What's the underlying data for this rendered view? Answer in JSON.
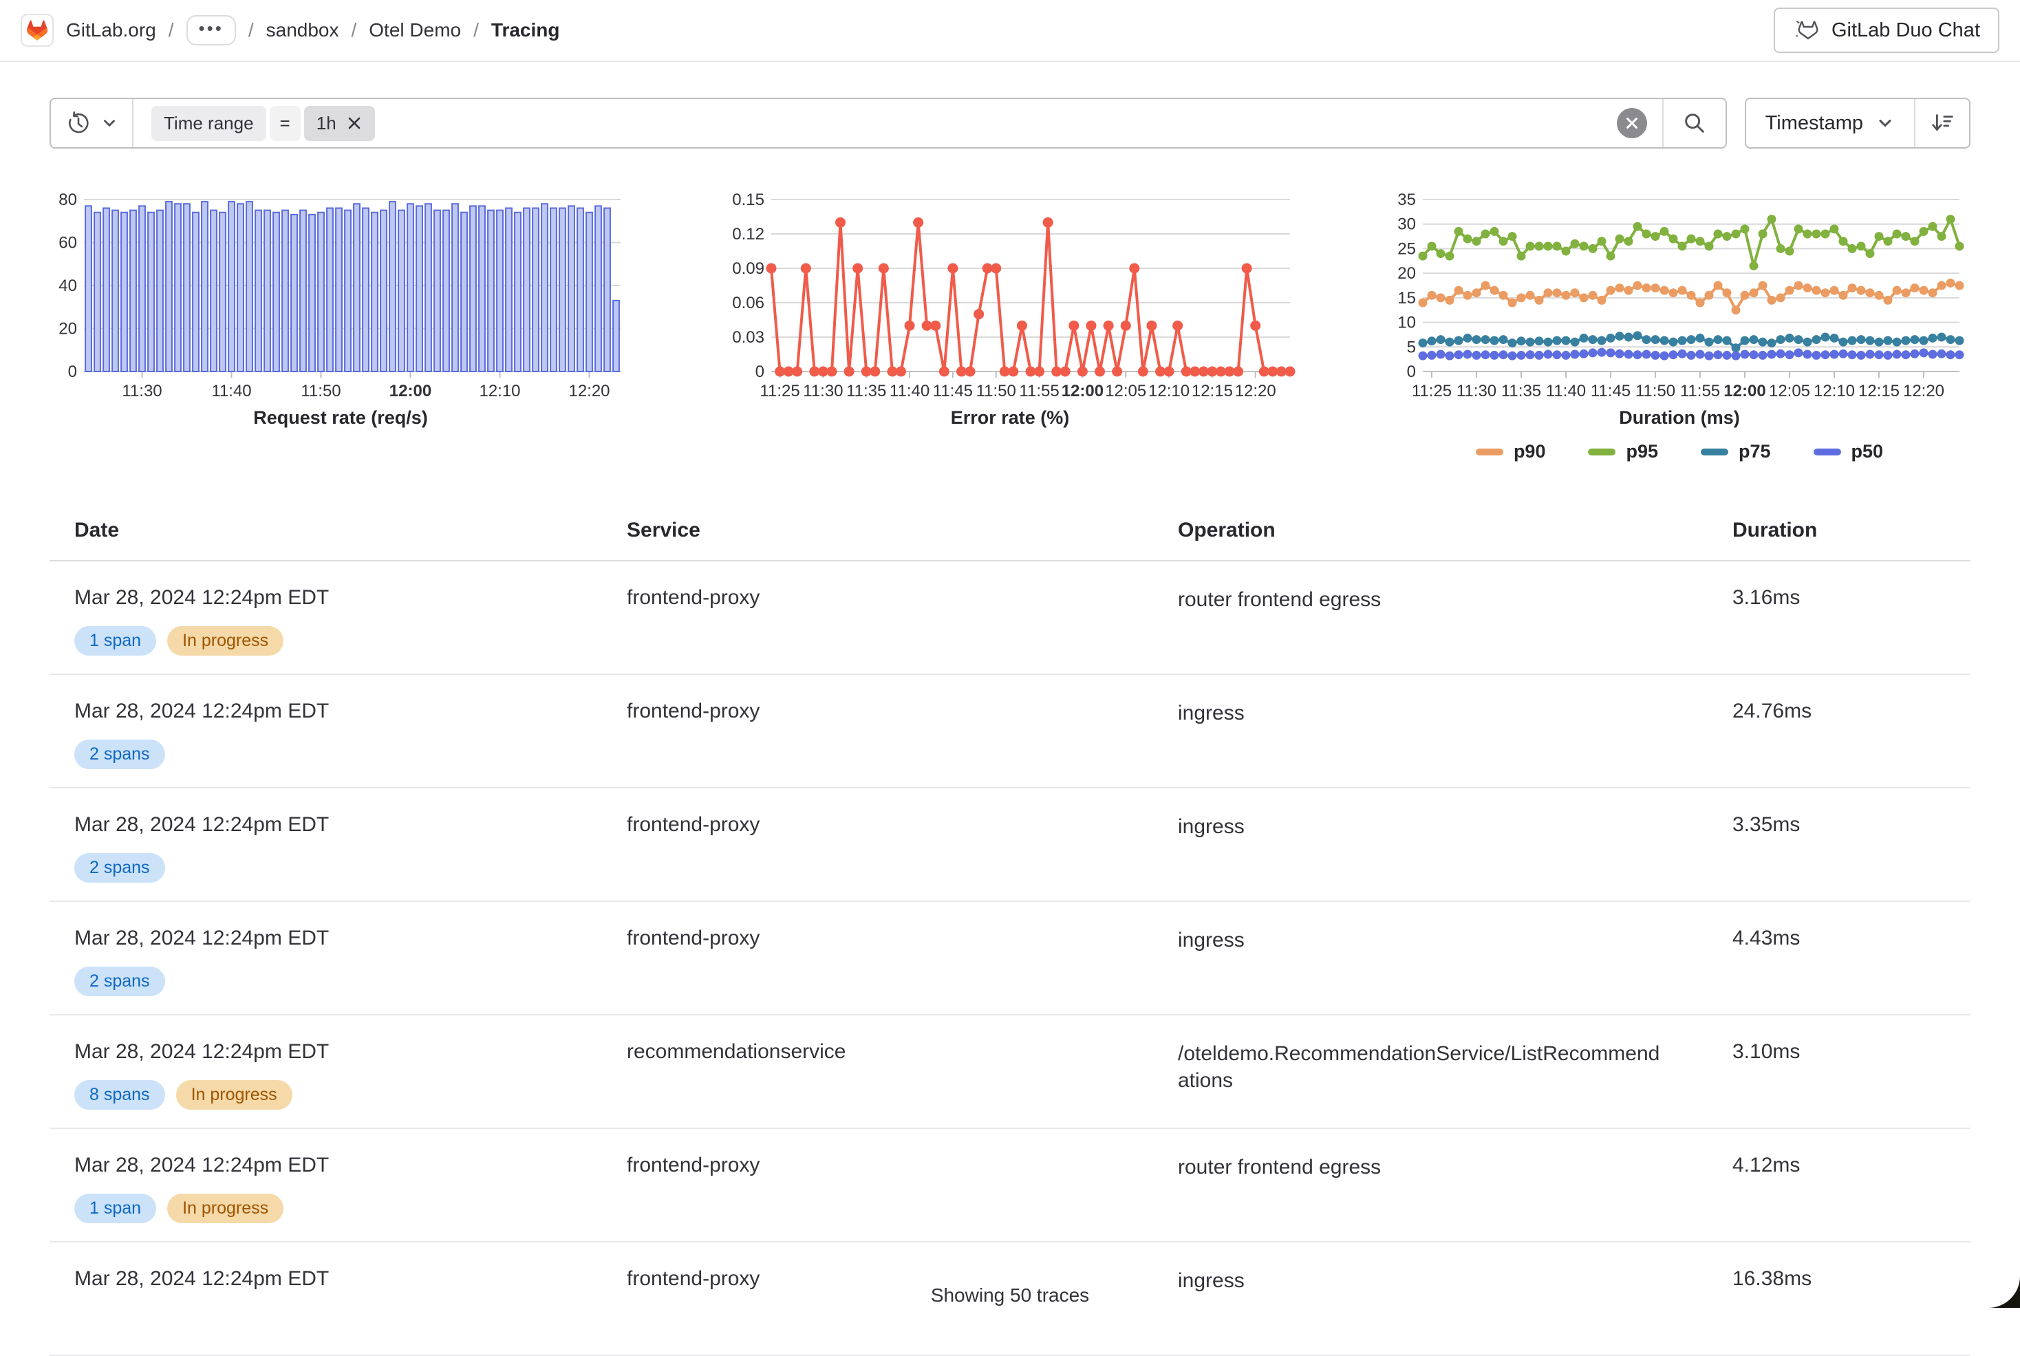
{
  "header": {
    "breadcrumb": [
      {
        "label": "GitLab.org"
      },
      {
        "label": "•••",
        "ellipsis": true
      },
      {
        "label": "sandbox"
      },
      {
        "label": "Otel Demo"
      },
      {
        "label": "Tracing",
        "current": true
      }
    ],
    "duo_chat_label": "GitLab Duo Chat"
  },
  "filter_bar": {
    "token": {
      "field": "Time range",
      "operator": "=",
      "value": "1h"
    },
    "sort_field": "Timestamp"
  },
  "chart_data": [
    {
      "type": "bar",
      "title": "Request rate (req/s)",
      "x_start": "11:24",
      "x_interval_min": 1,
      "x_count": 60,
      "ylim": [
        0,
        80
      ],
      "yticks": [
        0,
        20,
        40,
        60,
        80
      ],
      "xticks": [
        {
          "i": 6,
          "label": "11:30"
        },
        {
          "i": 16,
          "label": "11:40"
        },
        {
          "i": 26,
          "label": "11:50"
        },
        {
          "i": 36,
          "label": "12:00",
          "bold": true
        },
        {
          "i": 46,
          "label": "12:10"
        },
        {
          "i": 56,
          "label": "12:20"
        }
      ],
      "color": "#5a6bdd",
      "fill": "#bfc8f1",
      "values": [
        77,
        74,
        76,
        75,
        74,
        75,
        77,
        74,
        75,
        79,
        78,
        78,
        74,
        79,
        75,
        74,
        79,
        78,
        79,
        75,
        75,
        74,
        75,
        73,
        75,
        73,
        74,
        76,
        76,
        75,
        78,
        76,
        74,
        75,
        79,
        75,
        78,
        77,
        78,
        75,
        75,
        78,
        74,
        77,
        77,
        75,
        75,
        76,
        74,
        76,
        76,
        78,
        76,
        76,
        77,
        76,
        74,
        77,
        76,
        33
      ]
    },
    {
      "type": "line",
      "title": "Error rate (%)",
      "x_start": "11:24",
      "x_interval_min": 1,
      "x_count": 61,
      "ylim": [
        0,
        0.15
      ],
      "yticks": [
        0,
        0.03,
        0.06,
        0.09,
        0.12,
        0.15
      ],
      "xticks": [
        {
          "i": 1,
          "label": "11:25"
        },
        {
          "i": 6,
          "label": "11:30"
        },
        {
          "i": 11,
          "label": "11:35"
        },
        {
          "i": 16,
          "label": "11:40"
        },
        {
          "i": 21,
          "label": "11:45"
        },
        {
          "i": 26,
          "label": "11:50"
        },
        {
          "i": 31,
          "label": "11:55"
        },
        {
          "i": 36,
          "label": "12:00",
          "bold": true
        },
        {
          "i": 41,
          "label": "12:05"
        },
        {
          "i": 46,
          "label": "12:10"
        },
        {
          "i": 51,
          "label": "12:15"
        },
        {
          "i": 56,
          "label": "12:20"
        }
      ],
      "series": [
        {
          "name": "error rate",
          "color": "#f05b4a",
          "width": 4,
          "r": 7.5,
          "values": [
            0.09,
            0,
            0,
            0,
            0.09,
            0,
            0,
            0,
            0.13,
            0,
            0.09,
            0,
            0,
            0.09,
            0,
            0,
            0.04,
            0.13,
            0.04,
            0.04,
            0,
            0.09,
            0,
            0,
            0.05,
            0.09,
            0.09,
            0,
            0,
            0.04,
            0,
            0,
            0.13,
            0,
            0,
            0.04,
            0,
            0.04,
            0,
            0.04,
            0,
            0.04,
            0.09,
            0,
            0.04,
            0,
            0,
            0.04,
            0,
            0,
            0,
            0,
            0,
            0,
            0,
            0.09,
            0.04,
            0,
            0,
            0,
            0
          ]
        }
      ]
    },
    {
      "type": "line",
      "title": "Duration (ms)",
      "x_start": "11:24",
      "x_interval_min": 1,
      "x_count": 61,
      "ylim": [
        0,
        35
      ],
      "yticks": [
        0,
        5,
        10,
        15,
        20,
        25,
        30,
        35
      ],
      "xticks": [
        {
          "i": 1,
          "label": "11:25"
        },
        {
          "i": 6,
          "label": "11:30"
        },
        {
          "i": 11,
          "label": "11:35"
        },
        {
          "i": 16,
          "label": "11:40"
        },
        {
          "i": 21,
          "label": "11:45"
        },
        {
          "i": 26,
          "label": "11:50"
        },
        {
          "i": 31,
          "label": "11:55"
        },
        {
          "i": 36,
          "label": "12:00",
          "bold": true
        },
        {
          "i": 41,
          "label": "12:05"
        },
        {
          "i": 46,
          "label": "12:10"
        },
        {
          "i": 51,
          "label": "12:15"
        },
        {
          "i": 56,
          "label": "12:20"
        }
      ],
      "legend_position": "bottom",
      "series": [
        {
          "name": "p90",
          "color": "#ea9c62",
          "width": 4,
          "r": 6.5,
          "values": [
            14,
            15.5,
            15,
            14.5,
            16.5,
            15.5,
            16,
            17.5,
            16.5,
            15.5,
            14,
            15,
            15.5,
            14.5,
            16,
            16,
            15.5,
            16,
            15,
            15.5,
            14.5,
            16.5,
            17,
            16.5,
            17.5,
            17,
            17,
            16.5,
            16,
            16.5,
            15.5,
            14,
            15.5,
            17.5,
            16,
            12.5,
            15.5,
            16,
            17.5,
            14.5,
            15,
            16.5,
            17.5,
            17,
            16.5,
            16,
            16.5,
            15.5,
            17,
            16.5,
            16,
            15.5,
            14.5,
            16.5,
            16,
            17,
            16.5,
            16,
            17.5,
            18,
            17.5
          ]
        },
        {
          "name": "p95",
          "color": "#81b13e",
          "width": 4,
          "r": 6.5,
          "values": [
            23.5,
            25.5,
            24,
            23.5,
            28.5,
            27,
            26.5,
            28,
            28.5,
            26.5,
            27.5,
            23.5,
            25.5,
            25.5,
            25.5,
            25.5,
            24.5,
            26,
            25.5,
            25,
            26.5,
            23.5,
            27,
            26.5,
            29.5,
            28,
            27.5,
            28.5,
            27,
            25.5,
            27,
            26.5,
            25.5,
            28,
            27.5,
            28,
            29,
            21.5,
            28,
            31,
            25,
            24.5,
            29,
            28,
            28,
            28,
            29,
            26.5,
            25,
            25.5,
            24,
            27.5,
            26.5,
            28,
            27.5,
            26.5,
            28.5,
            29.5,
            27.5,
            31,
            25.5
          ]
        },
        {
          "name": "p75",
          "color": "#38809f",
          "width": 4,
          "r": 6.5,
          "values": [
            5.8,
            6.2,
            6.5,
            6,
            6.3,
            6.8,
            6.5,
            6.5,
            6.3,
            6.5,
            5.8,
            6.2,
            6,
            6.2,
            6,
            6.3,
            6.3,
            6,
            6.8,
            6.5,
            6.3,
            6.8,
            7.2,
            7,
            7.3,
            6.5,
            6.5,
            6.3,
            6,
            6.3,
            6.5,
            6.8,
            6,
            6.5,
            6.3,
            4.8,
            6.3,
            6.5,
            6,
            5.8,
            6.5,
            6.8,
            6.5,
            6,
            6.5,
            7,
            6.8,
            6,
            6.3,
            6.5,
            6.3,
            6,
            6.3,
            6,
            6.3,
            6.5,
            6.3,
            6.8,
            7,
            6.5,
            6.3
          ]
        },
        {
          "name": "p50",
          "color": "#5e6ee0",
          "width": 4,
          "r": 6.5,
          "values": [
            3.2,
            3.3,
            3.5,
            3.2,
            3.4,
            3.5,
            3.3,
            3.4,
            3.3,
            3.4,
            3.2,
            3.3,
            3.4,
            3.3,
            3.5,
            3.4,
            3.3,
            3.5,
            3.6,
            3.8,
            3.9,
            3.8,
            3.6,
            3.5,
            3.4,
            3.5,
            3.3,
            3.2,
            3.4,
            3.6,
            3.3,
            3.5,
            3.2,
            3.4,
            3.3,
            3.2,
            3.5,
            3.4,
            3.3,
            3.5,
            3.6,
            3.4,
            3.8,
            3.5,
            3.3,
            3.4,
            3.5,
            3.6,
            3.4,
            3.3,
            3.5,
            3.4,
            3.3,
            3.5,
            3.4,
            3.6,
            3.8,
            3.5,
            3.6,
            3.4,
            3.4
          ]
        }
      ]
    }
  ],
  "table": {
    "columns": [
      "Date",
      "Service",
      "Operation",
      "Duration"
    ],
    "rows": [
      {
        "date": "Mar 28, 2024 12:24pm EDT",
        "badges": [
          {
            "label": "1 span",
            "variant": "info"
          },
          {
            "label": "In progress",
            "variant": "warning"
          }
        ],
        "service": "frontend-proxy",
        "operation": "router frontend egress",
        "duration": "3.16ms"
      },
      {
        "date": "Mar 28, 2024 12:24pm EDT",
        "badges": [
          {
            "label": "2 spans",
            "variant": "info"
          }
        ],
        "service": "frontend-proxy",
        "operation": "ingress",
        "duration": "24.76ms"
      },
      {
        "date": "Mar 28, 2024 12:24pm EDT",
        "badges": [
          {
            "label": "2 spans",
            "variant": "info"
          }
        ],
        "service": "frontend-proxy",
        "operation": "ingress",
        "duration": "3.35ms"
      },
      {
        "date": "Mar 28, 2024 12:24pm EDT",
        "badges": [
          {
            "label": "2 spans",
            "variant": "info"
          }
        ],
        "service": "frontend-proxy",
        "operation": "ingress",
        "duration": "4.43ms"
      },
      {
        "date": "Mar 28, 2024 12:24pm EDT",
        "badges": [
          {
            "label": "8 spans",
            "variant": "info"
          },
          {
            "label": "In progress",
            "variant": "warning"
          }
        ],
        "service": "recommendationservice",
        "operation": "/oteldemo.RecommendationService/ListRecommendations",
        "duration": "3.10ms"
      },
      {
        "date": "Mar 28, 2024 12:24pm EDT",
        "badges": [
          {
            "label": "1 span",
            "variant": "info"
          },
          {
            "label": "In progress",
            "variant": "warning"
          }
        ],
        "service": "frontend-proxy",
        "operation": "router frontend egress",
        "duration": "4.12ms"
      },
      {
        "date": "Mar 28, 2024 12:24pm EDT",
        "badges": [],
        "service": "frontend-proxy",
        "operation": "ingress",
        "duration": "16.38ms"
      }
    ]
  },
  "footer": {
    "summary": "Showing 50 traces"
  },
  "colors": {
    "badge_info_bg": "#cbe2f9",
    "badge_info_text": "#1068bf",
    "badge_warning_bg": "#f5d9a8",
    "badge_warning_text": "#9e5400",
    "bar_stroke": "#5a6bdd",
    "error_line": "#f05b4a",
    "p90": "#ea9c62",
    "p95": "#81b13e",
    "p75": "#38809f",
    "p50": "#5e6ee0"
  }
}
